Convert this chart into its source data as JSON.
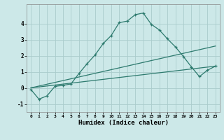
{
  "xlabel": "Humidex (Indice chaleur)",
  "bg_color": "#cce8e8",
  "line_color": "#2d7a6e",
  "grid_color": "#aacccc",
  "xlim": [
    -0.5,
    23.5
  ],
  "ylim": [
    -1.5,
    5.2
  ],
  "x_ticks": [
    0,
    1,
    2,
    3,
    4,
    5,
    6,
    7,
    8,
    9,
    10,
    11,
    12,
    13,
    14,
    15,
    16,
    17,
    18,
    19,
    20,
    21,
    22,
    23
  ],
  "y_ticks": [
    -1,
    0,
    1,
    2,
    3,
    4
  ],
  "line1_x": [
    0,
    1,
    2,
    3,
    4,
    5,
    6,
    7,
    8,
    9,
    10,
    11,
    12,
    13,
    14,
    15,
    16,
    17,
    18,
    19,
    20,
    21,
    22,
    23
  ],
  "line1_y": [
    -0.1,
    -0.7,
    -0.5,
    0.1,
    0.15,
    0.25,
    0.9,
    1.5,
    2.05,
    2.75,
    3.25,
    4.05,
    4.15,
    4.55,
    4.65,
    3.95,
    3.6,
    3.05,
    2.55,
    1.95,
    1.3,
    0.7,
    1.1,
    1.35
  ],
  "line2_x": [
    0,
    23
  ],
  "line2_y": [
    0.0,
    2.6
  ],
  "line3_x": [
    0,
    23
  ],
  "line3_y": [
    0.0,
    1.35
  ]
}
